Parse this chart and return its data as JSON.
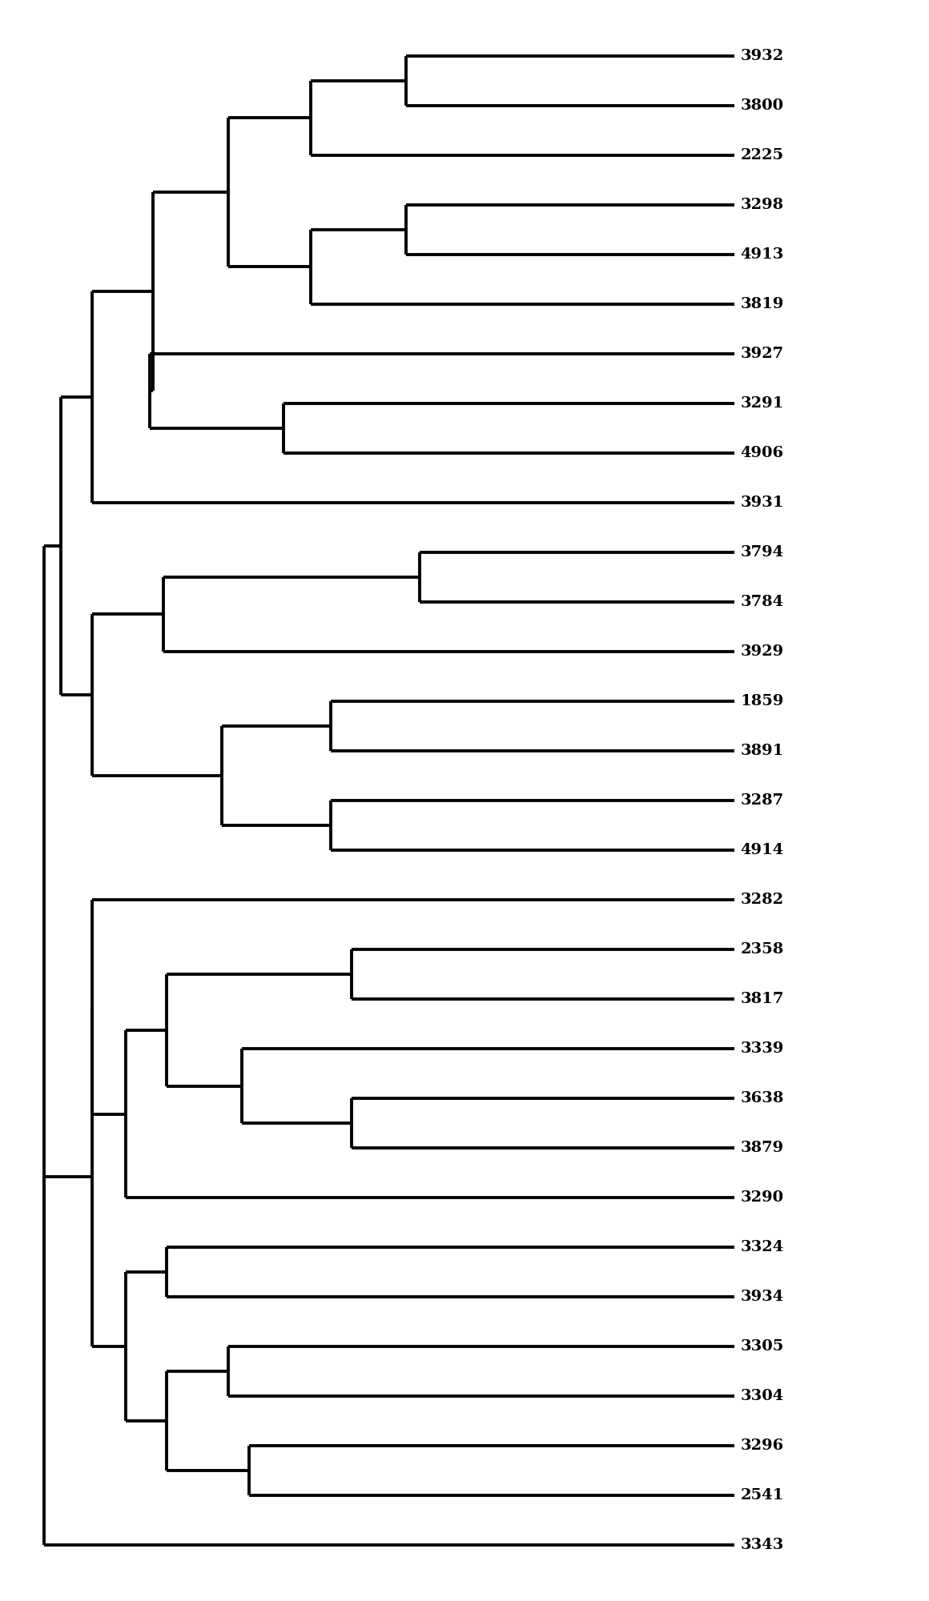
{
  "leaves": [
    "3932",
    "3800",
    "2225",
    "3298",
    "4913",
    "3819",
    "3927",
    "3291",
    "4906",
    "3931",
    "3794",
    "3784",
    "3929",
    "1859",
    "3891",
    "3287",
    "4914",
    "3282",
    "2358",
    "3817",
    "3339",
    "3638",
    "3879",
    "3290",
    "3324",
    "3934",
    "3305",
    "3304",
    "3296",
    "2541",
    "3343"
  ],
  "line_color": "#000000",
  "line_width": 2.8,
  "bg_color": "#ffffff",
  "label_fontsize": 14,
  "label_color": "#000000",
  "max_x": 10.0,
  "xlim_left": -0.5,
  "xlim_right": 11.2,
  "ylim_bottom": 0.2,
  "ylim_top": 31.8
}
